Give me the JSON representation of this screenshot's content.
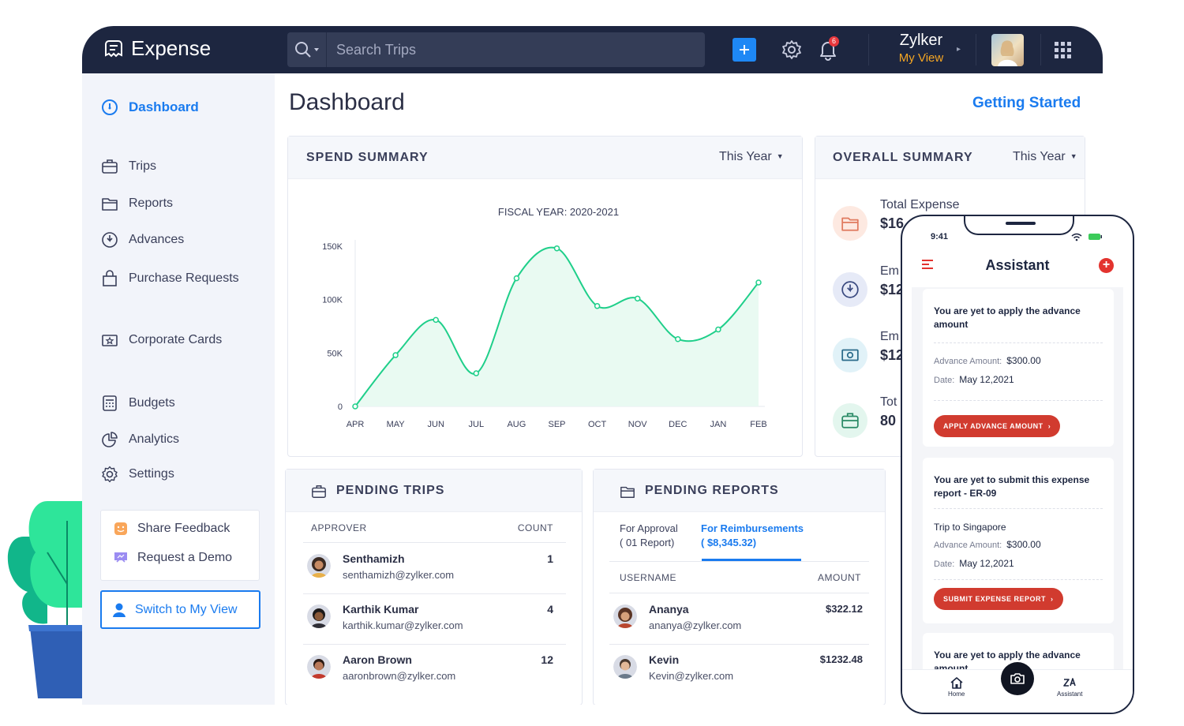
{
  "app": {
    "logo_text": "Expense",
    "search_placeholder": "Search Trips",
    "notification_count": "6",
    "user_name": "Zylker",
    "user_view": "My View"
  },
  "sidebar": {
    "items": [
      {
        "label": "Dashboard",
        "icon": "gauge-icon"
      },
      {
        "label": "Trips",
        "icon": "briefcase-icon"
      },
      {
        "label": "Reports",
        "icon": "folder-icon"
      },
      {
        "label": "Advances",
        "icon": "clock-arrow-icon"
      },
      {
        "label": "Purchase Requests",
        "icon": "shopping-bag-icon"
      },
      {
        "label": "Corporate Cards",
        "icon": "card-icon"
      },
      {
        "label": "Budgets",
        "icon": "calculator-icon"
      },
      {
        "label": "Analytics",
        "icon": "pie-chart-icon"
      },
      {
        "label": "Settings",
        "icon": "gear-icon"
      }
    ],
    "share_feedback": "Share Feedback",
    "request_demo": "Request a Demo",
    "switch_view": "Switch to My View"
  },
  "page": {
    "title": "Dashboard",
    "getting_started": "Getting Started"
  },
  "spend_summary": {
    "title": "SPEND SUMMARY",
    "period": "This Year"
  },
  "chart_data": {
    "type": "area",
    "title": "FISCAL YEAR: 2020-2021",
    "categories": [
      "APR",
      "MAY",
      "JUN",
      "JUL",
      "AUG",
      "SEP",
      "OCT",
      "NOV",
      "DEC",
      "JAN",
      "FEB"
    ],
    "values": [
      0,
      48000,
      81000,
      31000,
      120000,
      148000,
      94000,
      101000,
      63000,
      72000,
      116000
    ],
    "ylim": [
      0,
      150000
    ],
    "yticks": [
      0,
      50000,
      100000,
      150000
    ],
    "ytick_labels": [
      "0",
      "50K",
      "100K",
      "150K"
    ],
    "xlabel": "",
    "ylabel": "",
    "grid": false,
    "line_color": "#1fcf8a",
    "fill_color": "#e9faf2"
  },
  "overall_summary": {
    "title": "OVERALL SUMMARY",
    "period": "This Year",
    "items": [
      {
        "label": "Total Expense",
        "value": "$16",
        "icon": "folder-icon",
        "color": "#fde9e1"
      },
      {
        "label": "Em",
        "value": "$12",
        "icon": "clock-arrow-icon",
        "color": "#e6eaf7"
      },
      {
        "label": "Em",
        "value": "$12",
        "icon": "cash-icon",
        "color": "#e1f2f8"
      },
      {
        "label": "Tot",
        "value": "80",
        "icon": "briefcase-icon",
        "color": "#e3f6ee"
      }
    ]
  },
  "pending_trips": {
    "title": "PENDING TRIPS",
    "col_approver": "APPROVER",
    "col_count": "COUNT",
    "rows": [
      {
        "name": "Senthamizh",
        "email": "senthamizh@zylker.com",
        "count": "1"
      },
      {
        "name": "Karthik Kumar",
        "email": "karthik.kumar@zylker.com",
        "count": "4"
      },
      {
        "name": "Aaron Brown",
        "email": "aaronbrown@zylker.com",
        "count": "12"
      }
    ]
  },
  "pending_reports": {
    "title": "PENDING REPORTS",
    "tab_approval_label": "For Approval",
    "tab_approval_sub": "( 01 Report)",
    "tab_reimb_label": "For Reimbursements",
    "tab_reimb_sub": "( $8,345.32)",
    "col_username": "USERNAME",
    "col_amount": "AMOUNT",
    "rows": [
      {
        "name": "Ananya",
        "email": "ananya@zylker.com",
        "amount": "$322.12"
      },
      {
        "name": "Kevin",
        "email": "Kevin@zylker.com",
        "amount": "$1232.48"
      }
    ]
  },
  "phone": {
    "time": "9:41",
    "title": "Assistant",
    "card1": {
      "title": "You are yet to apply the advance amount",
      "amount_label": "Advance Amount:",
      "amount": "$300.00",
      "date_label": "Date:",
      "date": "May 12,2021",
      "button": "APPLY ADVANCE AMOUNT"
    },
    "card2": {
      "title": "You are yet to submit this expense report - ER-09",
      "trip": "Trip to Singapore",
      "amount_label": "Advance Amount:",
      "amount": "$300.00",
      "date_label": "Date:",
      "date": "May 12,2021",
      "button": "SUBMIT EXPENSE REPORT"
    },
    "card3": {
      "title": "You are yet to apply the advance amount"
    },
    "tab_home": "Home",
    "tab_assistant": "Assistant"
  }
}
